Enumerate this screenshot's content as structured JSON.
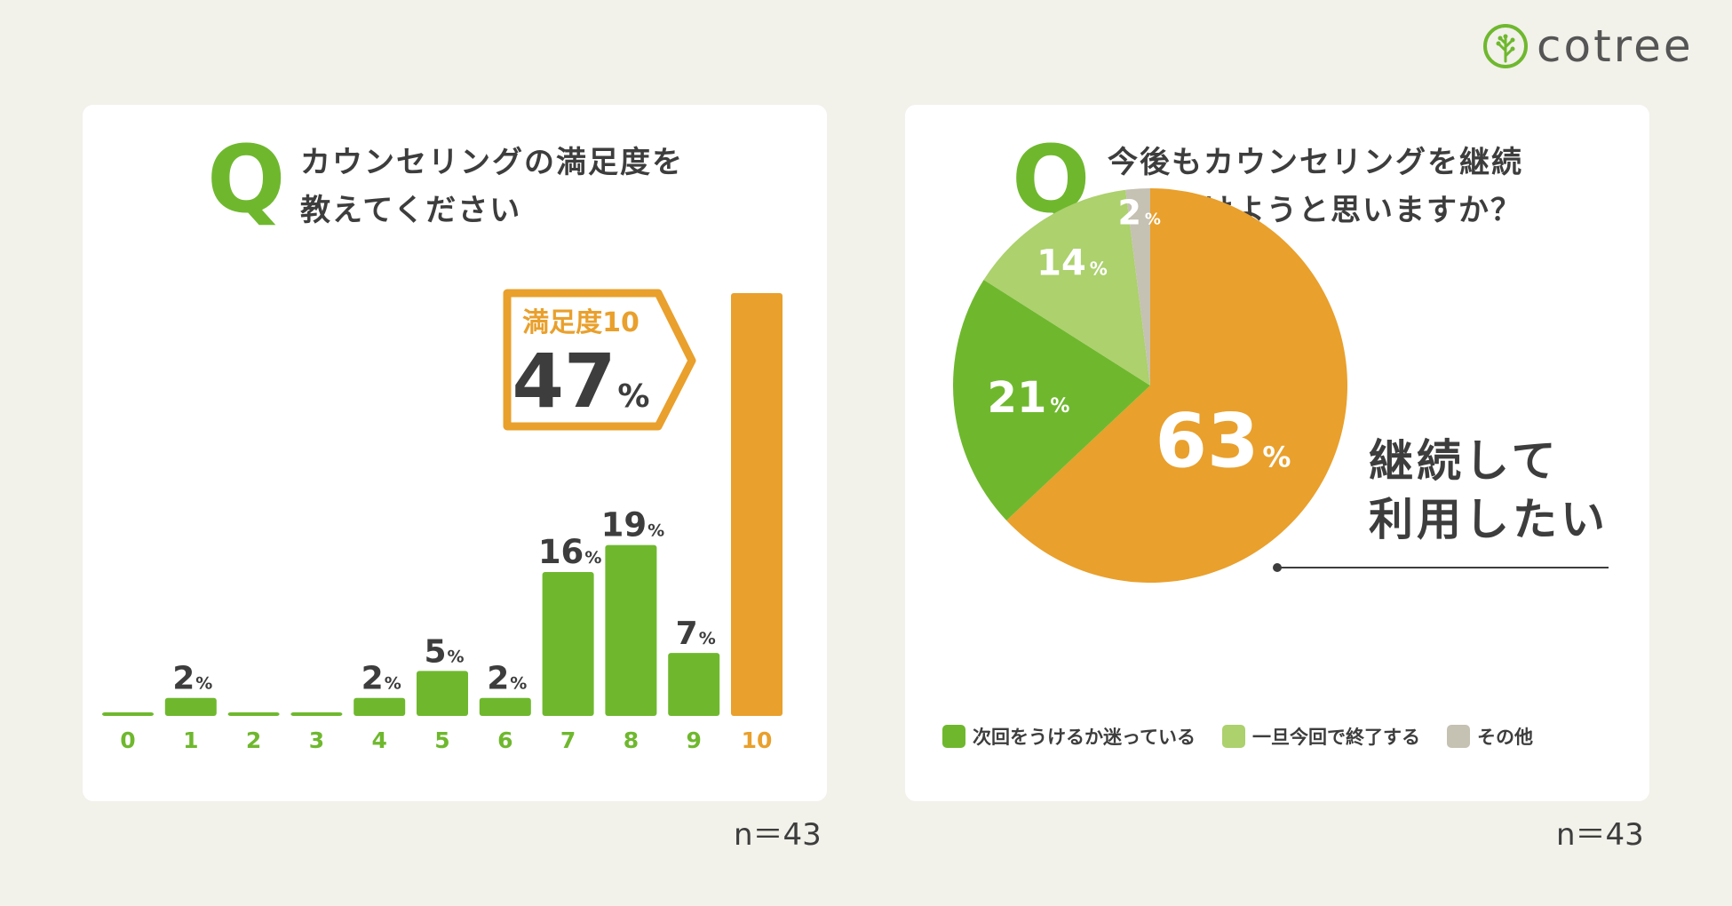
{
  "brand": {
    "name": "cotree",
    "color_primary": "#6fb82e",
    "color_accent": "#e9a02c"
  },
  "left_panel": {
    "q_mark": "Q",
    "title_line1": "カウンセリングの満足度を",
    "title_line2": "教えてください",
    "callout_label": "満足度10",
    "callout_value": "47",
    "callout_unit": "%",
    "n_label": "n＝43"
  },
  "right_panel": {
    "q_mark": "Q",
    "title_line1": "今後もカウンセリングを継続",
    "title_line2": "して受けようと思いますか？",
    "callout_line1": "継続して",
    "callout_line2": "利用したい",
    "n_label": "n＝43"
  },
  "chart_data": [
    {
      "type": "bar",
      "title": "カウンセリングの満足度を教えてください",
      "categories": [
        "0",
        "1",
        "2",
        "3",
        "4",
        "5",
        "6",
        "7",
        "8",
        "9",
        "10"
      ],
      "values": [
        0,
        2,
        0,
        0,
        2,
        5,
        2,
        16,
        19,
        7,
        47
      ],
      "value_labels": [
        "",
        "2",
        "",
        "",
        "2",
        "5",
        "2",
        "16",
        "19",
        "7",
        ""
      ],
      "unit": "%",
      "highlight_category": "10",
      "colors": {
        "default": "#6fb82e",
        "highlight": "#e9a02c"
      },
      "ylim": [
        0,
        47
      ]
    },
    {
      "type": "pie",
      "title": "今後もカウンセリングを継続して受けようと思いますか？",
      "labels": [
        "継続して利用したい",
        "次回をうけるか迷っている",
        "一旦今回で終了する",
        "その他"
      ],
      "values": [
        63,
        21,
        14,
        2
      ],
      "value_labels": [
        "63",
        "21",
        "14",
        "2"
      ],
      "unit": "%",
      "colors": [
        "#e9a02c",
        "#6fb82e",
        "#acd16d",
        "#c5c1b3"
      ],
      "legend": [
        "次回をうけるか迷っている",
        "一旦今回で終了する",
        "その他"
      ],
      "legend_colors": [
        "#6fb82e",
        "#acd16d",
        "#c5c1b3"
      ],
      "legend_position": "bottom"
    }
  ]
}
